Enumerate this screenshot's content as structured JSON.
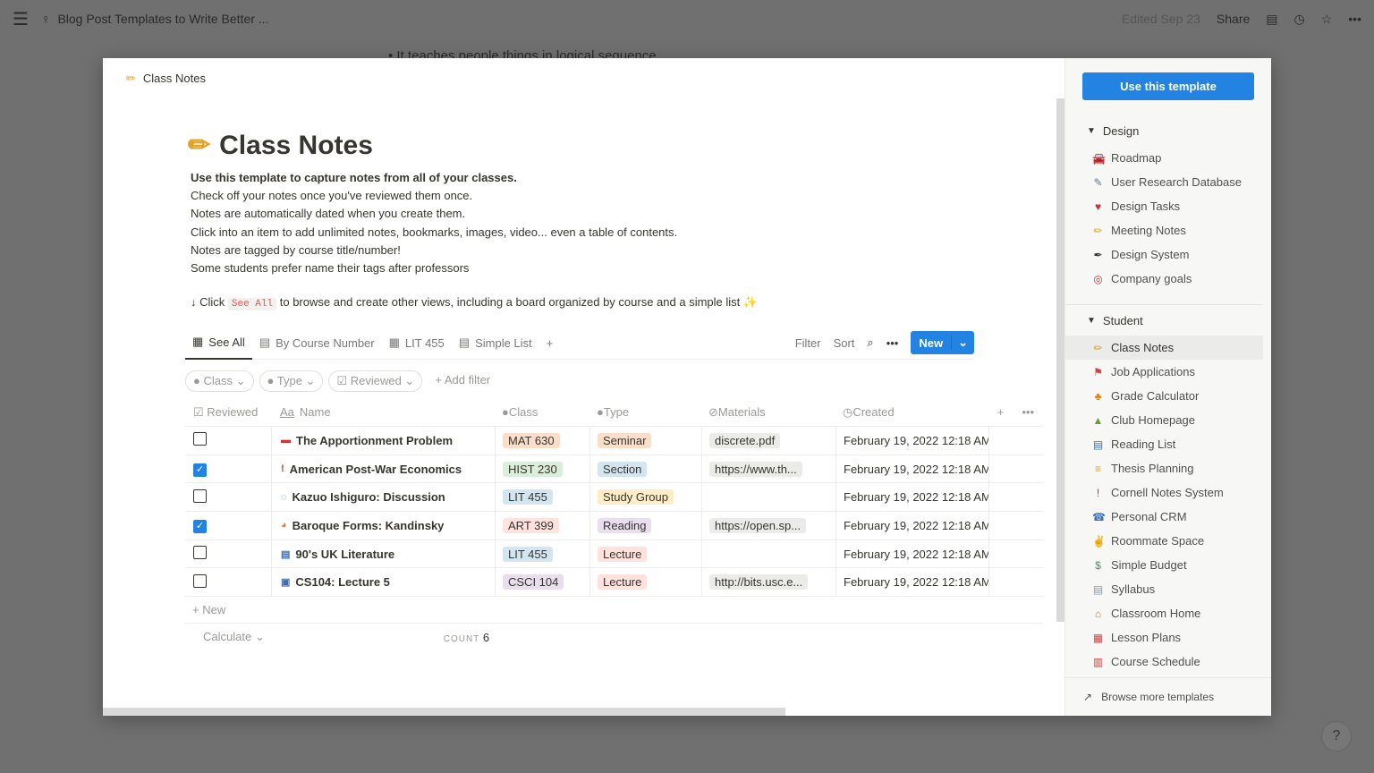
{
  "topbar": {
    "title": "Blog Post Templates to Write Better ...",
    "edited": "Edited Sep 23",
    "share": "Share"
  },
  "background_text": "It teaches people things in logical sequence",
  "modal": {
    "breadcrumb": "Class Notes",
    "title": "Class Notes",
    "description": [
      "Use this template to capture notes from all of your classes.",
      "Check off your notes once you've reviewed them once.",
      "Notes are automatically dated when you create them.",
      "Click into an item to add unlimited notes, bookmarks, images, video... even a table of contents.",
      "Notes are tagged by course title/number!",
      "Some students prefer name their tags after professors"
    ],
    "hint": {
      "before": "↓ Click",
      "code": "See All",
      "after": "to browse and create other views, including a board organized by course and a simple list"
    },
    "tabs": [
      "See All",
      "By Course Number",
      "LIT 455",
      "Simple List"
    ],
    "tools": {
      "filter": "Filter",
      "sort": "Sort",
      "new": "New"
    },
    "filters": [
      "Class",
      "Type",
      "Reviewed"
    ],
    "add_filter": "Add filter",
    "columns": [
      "Reviewed",
      "Name",
      "Class",
      "Type",
      "Materials",
      "Created"
    ],
    "rows": [
      {
        "reviewed": false,
        "icon": "flag-icon",
        "name": "The Apportionment Problem",
        "class": "MAT 630",
        "class_color": "#fadec9",
        "type": "Seminar",
        "type_color": "#fadec9",
        "materials": "discrete.pdf",
        "created": "February 19, 2022 12:18 AM"
      },
      {
        "reviewed": true,
        "icon": "pin-icon",
        "name": "American Post-War Economics",
        "class": "HIST 230",
        "class_color": "#dbeddb",
        "type": "Section",
        "type_color": "#d3e5ef",
        "materials": "https://www.th...",
        "created": "February 19, 2022 12:18 AM"
      },
      {
        "reviewed": false,
        "icon": "speech-bubble-icon",
        "name": "Kazuo Ishiguro: Discussion",
        "class": "LIT 455",
        "class_color": "#d3e5ef",
        "type": "Study Group",
        "type_color": "#fdecc8",
        "materials": "",
        "created": "February 19, 2022 12:18 AM"
      },
      {
        "reviewed": true,
        "icon": "palette-icon",
        "name": "Baroque Forms: Kandinsky",
        "class": "ART 399",
        "class_color": "#ffe2dd",
        "type": "Reading",
        "type_color": "#e8deee",
        "materials": "https://open.sp...",
        "created": "February 19, 2022 12:18 AM"
      },
      {
        "reviewed": false,
        "icon": "books-icon",
        "name": "90's UK Literature",
        "class": "LIT 455",
        "class_color": "#d3e5ef",
        "type": "Lecture",
        "type_color": "#ffe2dd",
        "materials": "",
        "created": "February 19, 2022 12:18 AM"
      },
      {
        "reviewed": false,
        "icon": "computer-icon",
        "name": "CS104: Lecture 5",
        "class": "CSCI 104",
        "class_color": "#e8deee",
        "type": "Lecture",
        "type_color": "#ffe2dd",
        "materials": "http://bits.usc.e...",
        "created": "February 19, 2022 12:18 AM"
      }
    ],
    "new_row": "New",
    "calculate": "Calculate",
    "count_label": "COUNT",
    "count": "6"
  },
  "sidebar": {
    "use_template": "Use this template",
    "sections": [
      {
        "title": "Design",
        "items": [
          {
            "label": "Roadmap",
            "icon": "🚘",
            "color": "#3b6fb5"
          },
          {
            "label": "User Research Database",
            "icon": "✎",
            "color": "#5c7a9a"
          },
          {
            "label": "Design Tasks",
            "icon": "♥",
            "color": "#d23030"
          },
          {
            "label": "Meeting Notes",
            "icon": "✏",
            "color": "#e0a020"
          },
          {
            "label": "Design System",
            "icon": "✒",
            "color": "#333"
          },
          {
            "label": "Company goals",
            "icon": "◎",
            "color": "#d23030"
          }
        ]
      },
      {
        "title": "Student",
        "items": [
          {
            "label": "Class Notes",
            "icon": "✏",
            "color": "#e0a020",
            "active": true
          },
          {
            "label": "Job Applications",
            "icon": "⚑",
            "color": "#c44"
          },
          {
            "label": "Grade Calculator",
            "icon": "♣",
            "color": "#e08020"
          },
          {
            "label": "Club Homepage",
            "icon": "▲",
            "color": "#6a9a40"
          },
          {
            "label": "Reading List",
            "icon": "▤",
            "color": "#3b6fb5"
          },
          {
            "label": "Thesis Planning",
            "icon": "≡",
            "color": "#e0a020"
          },
          {
            "label": "Cornell Notes System",
            "icon": "!",
            "color": "#d23030"
          },
          {
            "label": "Personal CRM",
            "icon": "☎",
            "color": "#3b6fb5"
          },
          {
            "label": "Roommate Space",
            "icon": "✌",
            "color": "#e0a020"
          },
          {
            "label": "Simple Budget",
            "icon": "$",
            "color": "#4a9a40"
          },
          {
            "label": "Syllabus",
            "icon": "▤",
            "color": "#8899aa"
          },
          {
            "label": "Classroom Home",
            "icon": "⌂",
            "color": "#c08030"
          },
          {
            "label": "Lesson Plans",
            "icon": "▦",
            "color": "#c44"
          },
          {
            "label": "Course Schedule",
            "icon": "▥",
            "color": "#c44"
          }
        ]
      }
    ],
    "browse": "Browse more templates"
  },
  "help": "?"
}
